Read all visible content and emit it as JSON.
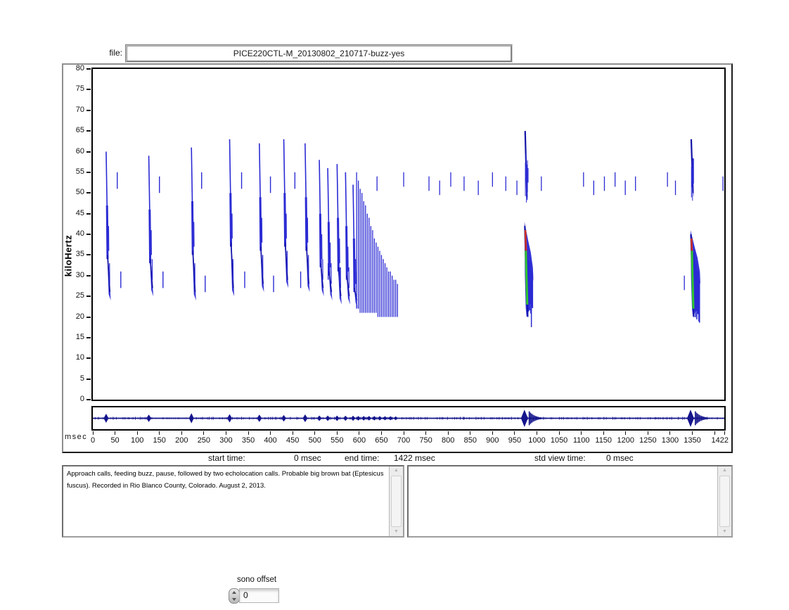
{
  "file_field": {
    "label": "file:",
    "value": "PICE220CTL-M_20130802_210717-buzz-yes"
  },
  "time_info": {
    "start_label": "start time:",
    "start_value": "0  msec",
    "end_label": "end time:",
    "end_value": "1422  msec",
    "std_label": "std view time:",
    "std_value": "0  msec"
  },
  "notes": {
    "left_text": "Approach calls, feeding buzz, pause, followed by two echolocation calls. Probable big brown bat (Eptesicus fuscus). Recorded in Rio Blanco County, Colorado. August 2, 2013.",
    "right_text": ""
  },
  "sono_offset": {
    "label": "sono offset",
    "value": "0"
  },
  "colors": {
    "call_blue": "#2b2bd4",
    "call_blue_dark": "#1414a8",
    "core_green": "#2fc52f",
    "core_red": "#d03224",
    "waveform_navy": "#14148c",
    "axis_black": "#000000"
  },
  "chart_data": {
    "type": "spectrogram",
    "title": "",
    "xlabel": "msec",
    "ylabel": "kiloHertz",
    "xlim": [
      0,
      1422
    ],
    "ylim": [
      0,
      80
    ],
    "x_ticks": [
      0,
      50,
      100,
      150,
      200,
      250,
      300,
      350,
      400,
      450,
      500,
      550,
      600,
      650,
      700,
      750,
      800,
      850,
      900,
      950,
      1000,
      1050,
      1100,
      1150,
      1200,
      1250,
      1300,
      1350,
      1422
    ],
    "x_tick_extra_marks": [
      1400
    ],
    "y_ticks": [
      80,
      75,
      70,
      65,
      60,
      55,
      50,
      45,
      40,
      35,
      30,
      25,
      20,
      15,
      10,
      5,
      0
    ],
    "approach_calls": [
      {
        "t": 30,
        "f_hi": 60,
        "f_lo": 24
      },
      {
        "t": 126,
        "f_hi": 59,
        "f_lo": 25
      },
      {
        "t": 222,
        "f_hi": 61,
        "f_lo": 24
      },
      {
        "t": 308,
        "f_hi": 63,
        "f_lo": 25
      },
      {
        "t": 375,
        "f_hi": 62,
        "f_lo": 26
      },
      {
        "t": 430,
        "f_hi": 63,
        "f_lo": 27
      },
      {
        "t": 478,
        "f_hi": 62,
        "f_lo": 26
      },
      {
        "t": 510,
        "f_hi": 58,
        "f_lo": 25
      },
      {
        "t": 529,
        "f_hi": 56,
        "f_lo": 24
      },
      {
        "t": 550,
        "f_hi": 57,
        "f_lo": 23
      },
      {
        "t": 569,
        "f_hi": 55,
        "f_lo": 23
      },
      {
        "t": 586,
        "f_hi": 52,
        "f_lo": 22
      }
    ],
    "echo_marks": [
      {
        "t": 55,
        "f": 55
      },
      {
        "t": 150,
        "f": 54
      },
      {
        "t": 245,
        "f": 55
      },
      {
        "t": 335,
        "f": 55
      },
      {
        "t": 400,
        "f": 54
      },
      {
        "t": 455,
        "f": 55
      },
      {
        "t": 63,
        "f": 31
      },
      {
        "t": 158,
        "f": 31
      },
      {
        "t": 253,
        "f": 30
      },
      {
        "t": 342,
        "f": 31
      },
      {
        "t": 407,
        "f": 30
      },
      {
        "t": 468,
        "f": 31
      },
      {
        "t": 530,
        "f": 33
      },
      {
        "t": 556,
        "f": 32
      }
    ],
    "buzz_calls": [
      {
        "t": 594,
        "f_hi": 55,
        "f_lo": 22
      },
      {
        "t": 598,
        "f_hi": 53,
        "f_lo": 22
      },
      {
        "t": 602,
        "f_hi": 51,
        "f_lo": 21
      },
      {
        "t": 606,
        "f_hi": 50,
        "f_lo": 21
      },
      {
        "t": 610,
        "f_hi": 48,
        "f_lo": 21
      },
      {
        "t": 614,
        "f_hi": 47,
        "f_lo": 21
      },
      {
        "t": 618,
        "f_hi": 45,
        "f_lo": 21
      },
      {
        "t": 622,
        "f_hi": 44,
        "f_lo": 21
      },
      {
        "t": 626,
        "f_hi": 42,
        "f_lo": 21
      },
      {
        "t": 630,
        "f_hi": 41,
        "f_lo": 21
      },
      {
        "t": 634,
        "f_hi": 39,
        "f_lo": 21
      },
      {
        "t": 638,
        "f_hi": 38,
        "f_lo": 21
      },
      {
        "t": 642,
        "f_hi": 37,
        "f_lo": 20
      },
      {
        "t": 646,
        "f_hi": 36,
        "f_lo": 20
      },
      {
        "t": 650,
        "f_hi": 35,
        "f_lo": 20
      },
      {
        "t": 654,
        "f_hi": 34,
        "f_lo": 20
      },
      {
        "t": 658,
        "f_hi": 33,
        "f_lo": 20
      },
      {
        "t": 662,
        "f_hi": 32,
        "f_lo": 20
      },
      {
        "t": 666,
        "f_hi": 31,
        "f_lo": 20
      },
      {
        "t": 670,
        "f_hi": 31,
        "f_lo": 20
      },
      {
        "t": 674,
        "f_hi": 30,
        "f_lo": 20
      },
      {
        "t": 678,
        "f_hi": 29,
        "f_lo": 20
      },
      {
        "t": 682,
        "f_hi": 29,
        "f_lo": 20
      },
      {
        "t": 686,
        "f_hi": 28,
        "f_lo": 20
      }
    ],
    "noise_ticks": [
      {
        "t": 640,
        "f": 54
      },
      {
        "t": 700,
        "f": 55
      },
      {
        "t": 757,
        "f": 54
      },
      {
        "t": 781,
        "f": 53
      },
      {
        "t": 806,
        "f": 55
      },
      {
        "t": 836,
        "f": 54
      },
      {
        "t": 868,
        "f": 53
      },
      {
        "t": 900,
        "f": 55
      },
      {
        "t": 930,
        "f": 54
      },
      {
        "t": 955,
        "f": 53
      },
      {
        "t": 1010,
        "f": 54
      },
      {
        "t": 1105,
        "f": 55
      },
      {
        "t": 1128,
        "f": 53
      },
      {
        "t": 1152,
        "f": 54
      },
      {
        "t": 1176,
        "f": 55
      },
      {
        "t": 1199,
        "f": 53
      },
      {
        "t": 1222,
        "f": 54
      },
      {
        "t": 1294,
        "f": 55
      },
      {
        "t": 1312,
        "f": 53
      },
      {
        "t": 1332,
        "f": 30
      },
      {
        "t": 1419,
        "f": 54
      },
      {
        "t": 980,
        "f": 56
      }
    ],
    "echolocation_calls": [
      {
        "t": 972,
        "upper": {
          "f_hi": 65,
          "f_lo": 50
        },
        "body": {
          "f_hi": 43,
          "f_lo": 20
        },
        "core_red": [
          41,
          34
        ],
        "core_green": [
          36,
          23
        ],
        "width": 19
      },
      {
        "t": 1346,
        "upper": {
          "f_hi": 63,
          "f_lo": 51
        },
        "body": {
          "f_hi": 41,
          "f_lo": 20
        },
        "core_red": [
          39,
          33
        ],
        "core_green": [
          36,
          22
        ],
        "width": 21
      }
    ],
    "waveform_bursts": [
      {
        "t": 30,
        "a": 0.5
      },
      {
        "t": 126,
        "a": 0.4
      },
      {
        "t": 222,
        "a": 0.55
      },
      {
        "t": 308,
        "a": 0.45
      },
      {
        "t": 375,
        "a": 0.4
      },
      {
        "t": 430,
        "a": 0.35
      },
      {
        "t": 478,
        "a": 0.42
      },
      {
        "t": 510,
        "a": 0.3
      },
      {
        "t": 529,
        "a": 0.3
      },
      {
        "t": 550,
        "a": 0.3
      },
      {
        "t": 569,
        "a": 0.28
      },
      {
        "t": 586,
        "a": 0.28
      },
      {
        "t": 598,
        "a": 0.25
      },
      {
        "t": 610,
        "a": 0.25
      },
      {
        "t": 622,
        "a": 0.25
      },
      {
        "t": 634,
        "a": 0.24
      },
      {
        "t": 646,
        "a": 0.24
      },
      {
        "t": 658,
        "a": 0.22
      },
      {
        "t": 670,
        "a": 0.22
      },
      {
        "t": 682,
        "a": 0.2
      },
      {
        "t": 972,
        "a": 0.95,
        "tail": 1
      },
      {
        "t": 1346,
        "a": 0.95,
        "tail": 1
      }
    ]
  }
}
